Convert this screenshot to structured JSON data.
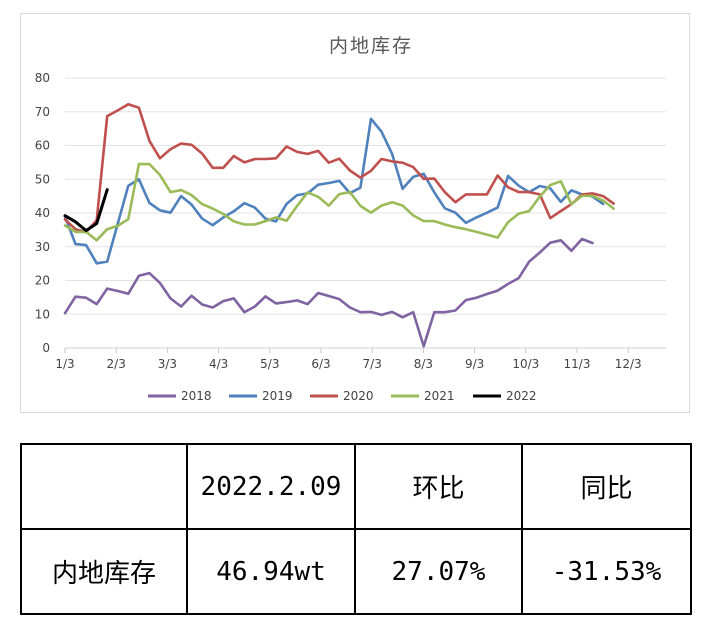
{
  "chart_data": {
    "type": "line",
    "title": "内地库存",
    "xlabel": "",
    "ylabel": "",
    "ylim": [
      0,
      80
    ],
    "yticks": [
      0,
      10,
      20,
      30,
      40,
      50,
      60,
      70,
      80
    ],
    "xticks": [
      "1/3",
      "2/3",
      "3/3",
      "4/3",
      "5/3",
      "6/3",
      "7/3",
      "8/3",
      "9/3",
      "10/3",
      "11/3",
      "12/3"
    ],
    "grid": true,
    "legend": "bottom",
    "series": [
      {
        "name": "2018",
        "color": "#8064a2",
        "values": [
          10.3,
          15.2,
          14.9,
          13,
          17.6,
          16.9,
          16.1,
          21.4,
          22.2,
          19.3,
          14.7,
          12.3,
          15.5,
          12.9,
          12,
          13.9,
          14.7,
          10.6,
          12.3,
          15.3,
          13.2,
          13.6,
          14.1,
          13,
          16.3,
          15.4,
          14.5,
          12,
          10.6,
          10.7,
          9.8,
          10.7,
          9.1,
          10.6,
          0.5,
          10.6,
          10.6,
          11.1,
          14.2,
          14.9,
          16,
          17,
          19,
          20.7,
          25.6,
          28.3,
          31.2,
          31.9,
          28.8,
          32.3,
          31.1
        ]
      },
      {
        "name": "2019",
        "color": "#4f81bd",
        "values": [
          39,
          30.8,
          30.5,
          25.1,
          25.6,
          36.9,
          48.1,
          50,
          43,
          40.8,
          40.1,
          45,
          42.5,
          38.3,
          36.4,
          38.7,
          40.5,
          42.9,
          41.6,
          38.3,
          37.5,
          42.7,
          45.3,
          45.8,
          48.4,
          48.9,
          49.5,
          45.9,
          47.5,
          67.9,
          64.1,
          57.5,
          47.2,
          50.7,
          51.6,
          46.1,
          41.4,
          40.1,
          37.1,
          38.7,
          40.1,
          41.6,
          51,
          48.1,
          46.2,
          48,
          47.3,
          43.3,
          46.7,
          45.5,
          44.9,
          42.7
        ]
      },
      {
        "name": "2020",
        "color": "#c0504d",
        "values": [
          38.1,
          35.2,
          34.3,
          37.9,
          68.7,
          70.4,
          72.2,
          71.2,
          61.4,
          56.2,
          58.9,
          60.6,
          60.2,
          57.6,
          53.4,
          53.4,
          56.9,
          55,
          56,
          56,
          56.2,
          59.7,
          58.1,
          57.5,
          58.4,
          54.9,
          56.1,
          52.6,
          50.5,
          52.5,
          56,
          55.3,
          54.9,
          53.6,
          50.1,
          50.2,
          46.2,
          43.2,
          45.5,
          45.5,
          45.5,
          51.1,
          47.6,
          46.2,
          46.2,
          45.5,
          38.5,
          40.6,
          42.6,
          45.5,
          45.8,
          45,
          42.8
        ]
      },
      {
        "name": "2021",
        "color": "#9bbb59",
        "values": [
          36.3,
          34.4,
          34.4,
          31.9,
          35.2,
          36.2,
          38.2,
          54.5,
          54.5,
          51.3,
          46.2,
          46.8,
          45.3,
          42.6,
          41.3,
          39.7,
          37.5,
          36.6,
          36.6,
          37.6,
          38.7,
          37.7,
          42.1,
          46.1,
          44.8,
          42.2,
          45.6,
          46.2,
          42.1,
          40.1,
          42.2,
          43.2,
          42.2,
          39.3,
          37.6,
          37.6,
          36.6,
          35.8,
          35.2,
          34.4,
          33.6,
          32.7,
          37.3,
          39.8,
          40.6,
          44.9,
          48.3,
          49.4,
          42.6,
          45.1,
          45.1,
          43.7,
          41.3
        ]
      },
      {
        "name": "2022",
        "color": "#000000",
        "values": [
          39.2,
          37.4,
          34.8,
          36.9,
          46.9
        ]
      }
    ]
  },
  "table": {
    "header": [
      "",
      "2022.2.09",
      "环比",
      "同比"
    ],
    "row": [
      "内地库存",
      "46.94wt",
      "27.07%",
      "-31.53%"
    ]
  }
}
